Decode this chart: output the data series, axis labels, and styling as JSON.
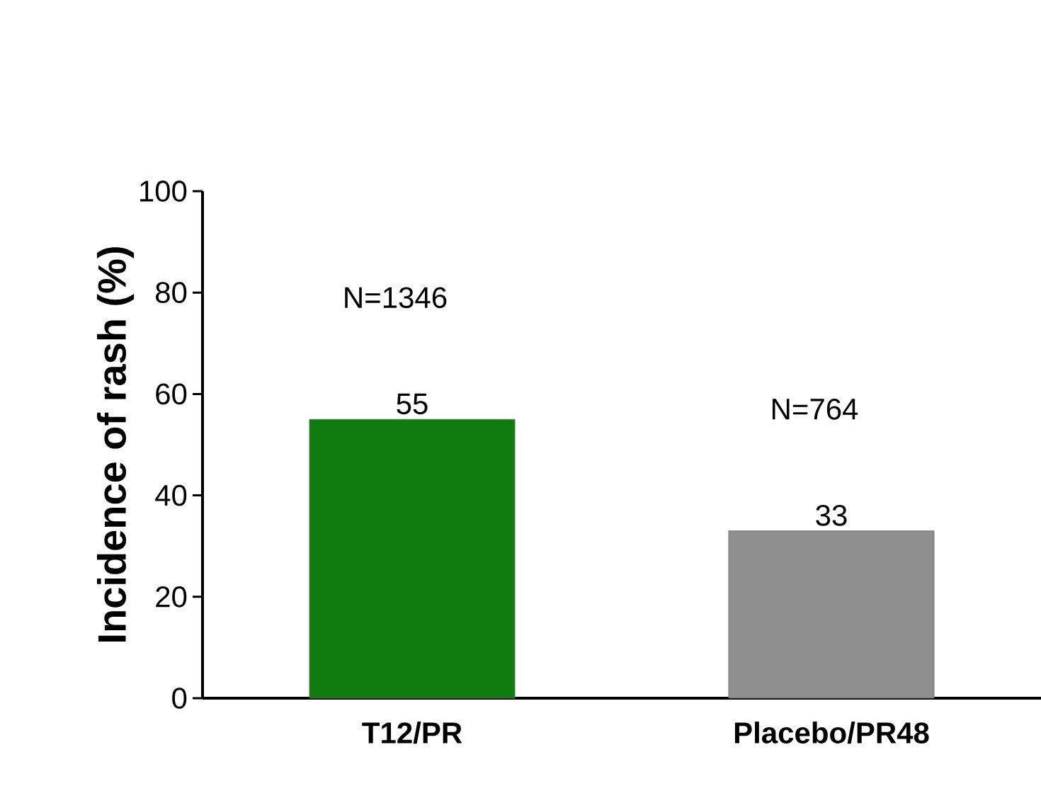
{
  "chart_data": {
    "type": "bar",
    "ylabel": "Incidence of rash (%)",
    "categories": [
      "T12/PR",
      "Placebo/PR48"
    ],
    "values": [
      55,
      33
    ],
    "colors": [
      "#107c10",
      "#8f8f8f"
    ],
    "ylim": [
      0,
      100
    ],
    "yticks": [
      0,
      20,
      40,
      60,
      80,
      100
    ],
    "data_labels": true,
    "annotations": [
      "N=1346",
      "N=764"
    ]
  }
}
